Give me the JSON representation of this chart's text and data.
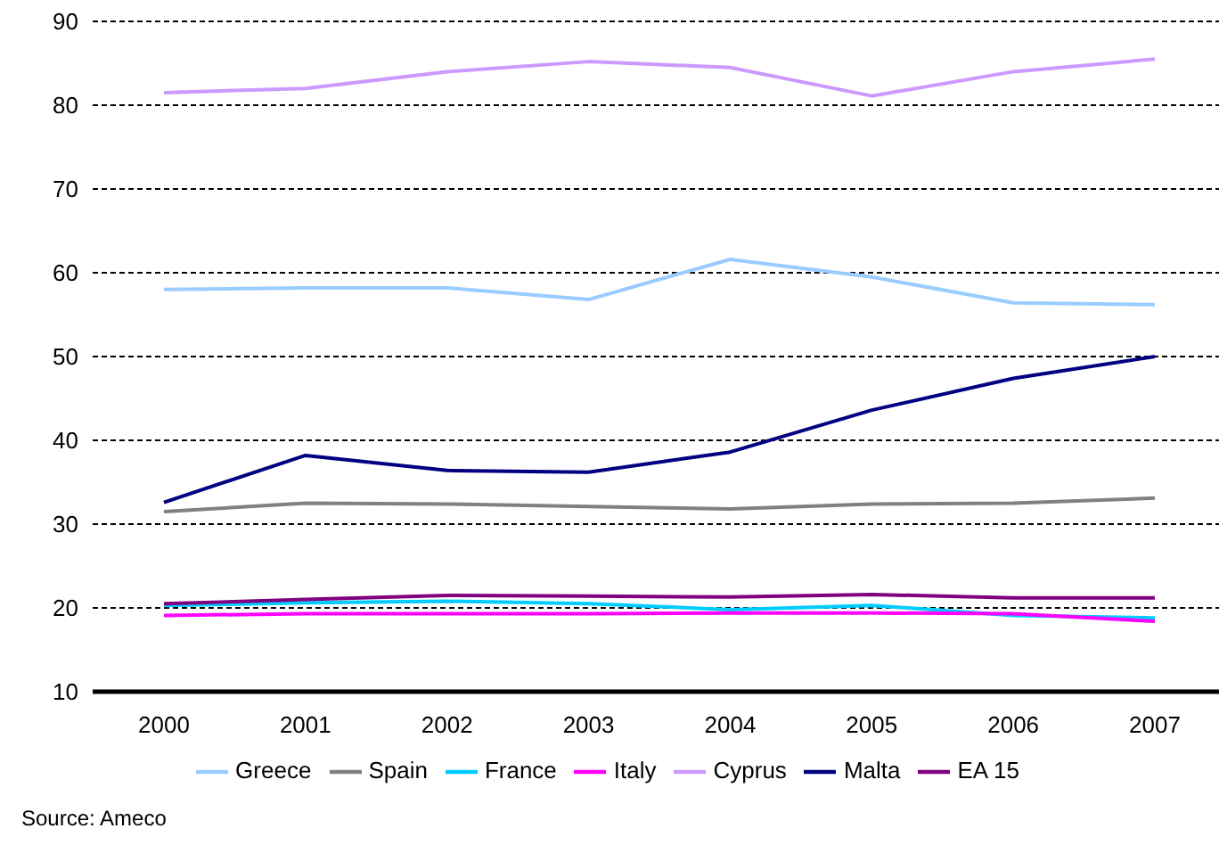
{
  "chart_data": {
    "type": "line",
    "categories": [
      "2000",
      "2001",
      "2002",
      "2003",
      "2004",
      "2005",
      "2006",
      "2007"
    ],
    "series": [
      {
        "name": "Greece",
        "color": "#99ccff",
        "values": [
          58,
          58.2,
          58.2,
          56.8,
          61.6,
          59.5,
          56.4,
          56.2
        ]
      },
      {
        "name": "Spain",
        "color": "#808080",
        "values": [
          31.5,
          32.5,
          32.4,
          32.1,
          31.8,
          32.4,
          32.5,
          33.1
        ]
      },
      {
        "name": "France",
        "color": "#00ccff",
        "values": [
          20.3,
          20.6,
          20.8,
          20.5,
          19.8,
          20.3,
          19.1,
          18.8
        ]
      },
      {
        "name": "Italy",
        "color": "#ff00ff",
        "values": [
          19.1,
          19.3,
          19.3,
          19.3,
          19.4,
          19.4,
          19.3,
          18.4
        ]
      },
      {
        "name": "Cyprus",
        "color": "#cc99ff",
        "values": [
          81.5,
          82,
          84,
          85.2,
          84.5,
          81.1,
          84,
          85.5
        ]
      },
      {
        "name": "Malta",
        "color": "#000080",
        "values": [
          32.6,
          38.2,
          36.4,
          36.2,
          38.6,
          43.6,
          47.4,
          50
        ]
      },
      {
        "name": "EA 15",
        "color": "#800080",
        "values": [
          20.5,
          21,
          21.5,
          21.4,
          21.3,
          21.6,
          21.2,
          21.2
        ]
      }
    ],
    "ylim": [
      10,
      90
    ],
    "yticks": [
      10,
      20,
      30,
      40,
      50,
      60,
      70,
      80,
      90
    ],
    "grid": "y",
    "legend": "bottom",
    "marker": "none",
    "line_style": "solid",
    "annotations": [
      "Source: Ameco"
    ]
  }
}
